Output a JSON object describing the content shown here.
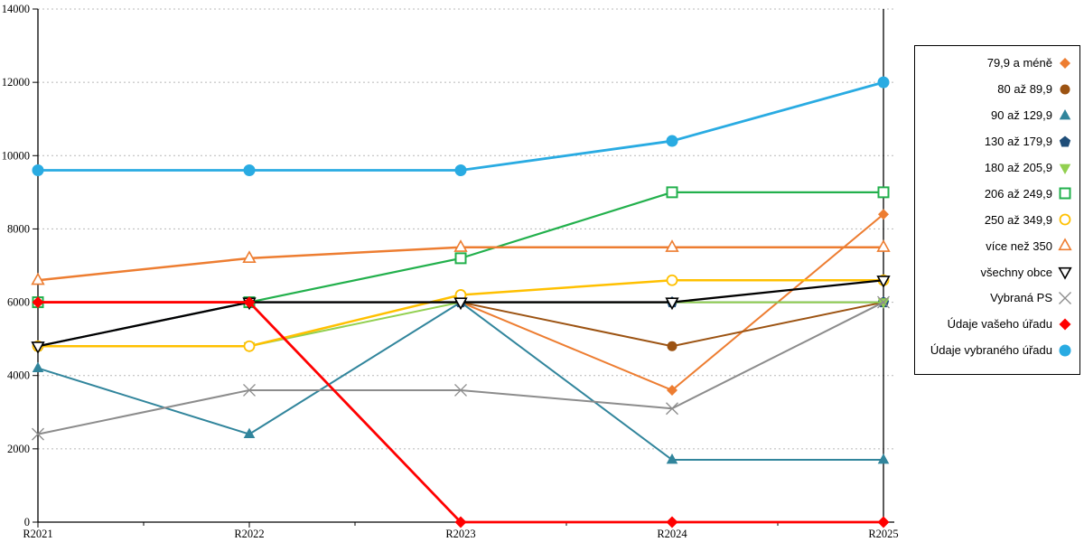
{
  "chart_data": {
    "type": "line",
    "title": "",
    "xlabel": "",
    "ylabel": "",
    "categories": [
      "R2021",
      "R2022",
      "R2023",
      "R2024",
      "R2025"
    ],
    "ylim": [
      0,
      14000
    ],
    "ytick_step": 2000,
    "y_tick_labels": [
      "0",
      "2000",
      "4000",
      "6000",
      "8000",
      "10000",
      "12000",
      "14000"
    ],
    "grid": "horizontal-dotted",
    "legend_position": "right",
    "series": [
      {
        "name": "79,9 a méně",
        "color": "#ED7D31",
        "marker": "diamond-filled",
        "msize": 6,
        "width": 2,
        "values": [
          null,
          null,
          6000,
          3600,
          8400
        ]
      },
      {
        "name": "80 až 89,9",
        "color": "#9C5312",
        "marker": "circle-filled",
        "msize": 5.5,
        "width": 2,
        "values": [
          null,
          null,
          6000,
          4800,
          6000
        ]
      },
      {
        "name": "90 až 129,9",
        "color": "#31859C",
        "marker": "triangle-up-filled",
        "msize": 7,
        "width": 2,
        "values": [
          4200,
          2400,
          6000,
          1700,
          1700
        ]
      },
      {
        "name": "130 až 179,9",
        "color": "#1F4E79",
        "marker": "pentagon-filled",
        "msize": 6.5,
        "width": 2,
        "values": [
          4800,
          6000,
          6000,
          6000,
          6000
        ]
      },
      {
        "name": "180 až 205,9",
        "color": "#92D050",
        "marker": "triangle-down-filled",
        "msize": 7,
        "width": 2,
        "values": [
          4800,
          4800,
          6000,
          6000,
          6000
        ]
      },
      {
        "name": "206 až 249,9",
        "color": "#22B04C",
        "marker": "square-open",
        "msize": 5.5,
        "width": 2.2,
        "values": [
          6000,
          6000,
          7200,
          9000,
          9000
        ]
      },
      {
        "name": "250 až 349,9",
        "color": "#FFC000",
        "marker": "circle-open",
        "msize": 5.5,
        "width": 2.5,
        "values": [
          4800,
          4800,
          6200,
          6600,
          6600
        ]
      },
      {
        "name": "více než 350",
        "color": "#ED7D31",
        "marker": "triangle-up-open",
        "msize": 7,
        "width": 2.5,
        "values": [
          6600,
          7200,
          7500,
          7500,
          7500
        ]
      },
      {
        "name": "všechny obce",
        "color": "#000000",
        "marker": "triangle-down-open",
        "msize": 7,
        "width": 2.3,
        "values": [
          4800,
          6000,
          6000,
          6000,
          6600
        ]
      },
      {
        "name": "Vybraná PS",
        "color": "#8C8C8C",
        "marker": "x",
        "msize": 6.5,
        "width": 2,
        "values": [
          2400,
          3600,
          3600,
          3100,
          6000
        ]
      },
      {
        "name": "Údaje vašeho úřadu",
        "color": "#FF0000",
        "marker": "diamond-filled",
        "msize": 6.5,
        "width": 2.8,
        "values": [
          6000,
          6000,
          0,
          0,
          0
        ]
      },
      {
        "name": "Údaje vybraného úřadu",
        "color": "#29ABE2",
        "marker": "circle-filled",
        "msize": 6.5,
        "width": 2.8,
        "values": [
          9600,
          9600,
          9600,
          10400,
          12000
        ]
      }
    ]
  },
  "colors": {
    "grid": "#B8B8B8",
    "axis": "#000000",
    "background": "#FFFFFF"
  }
}
